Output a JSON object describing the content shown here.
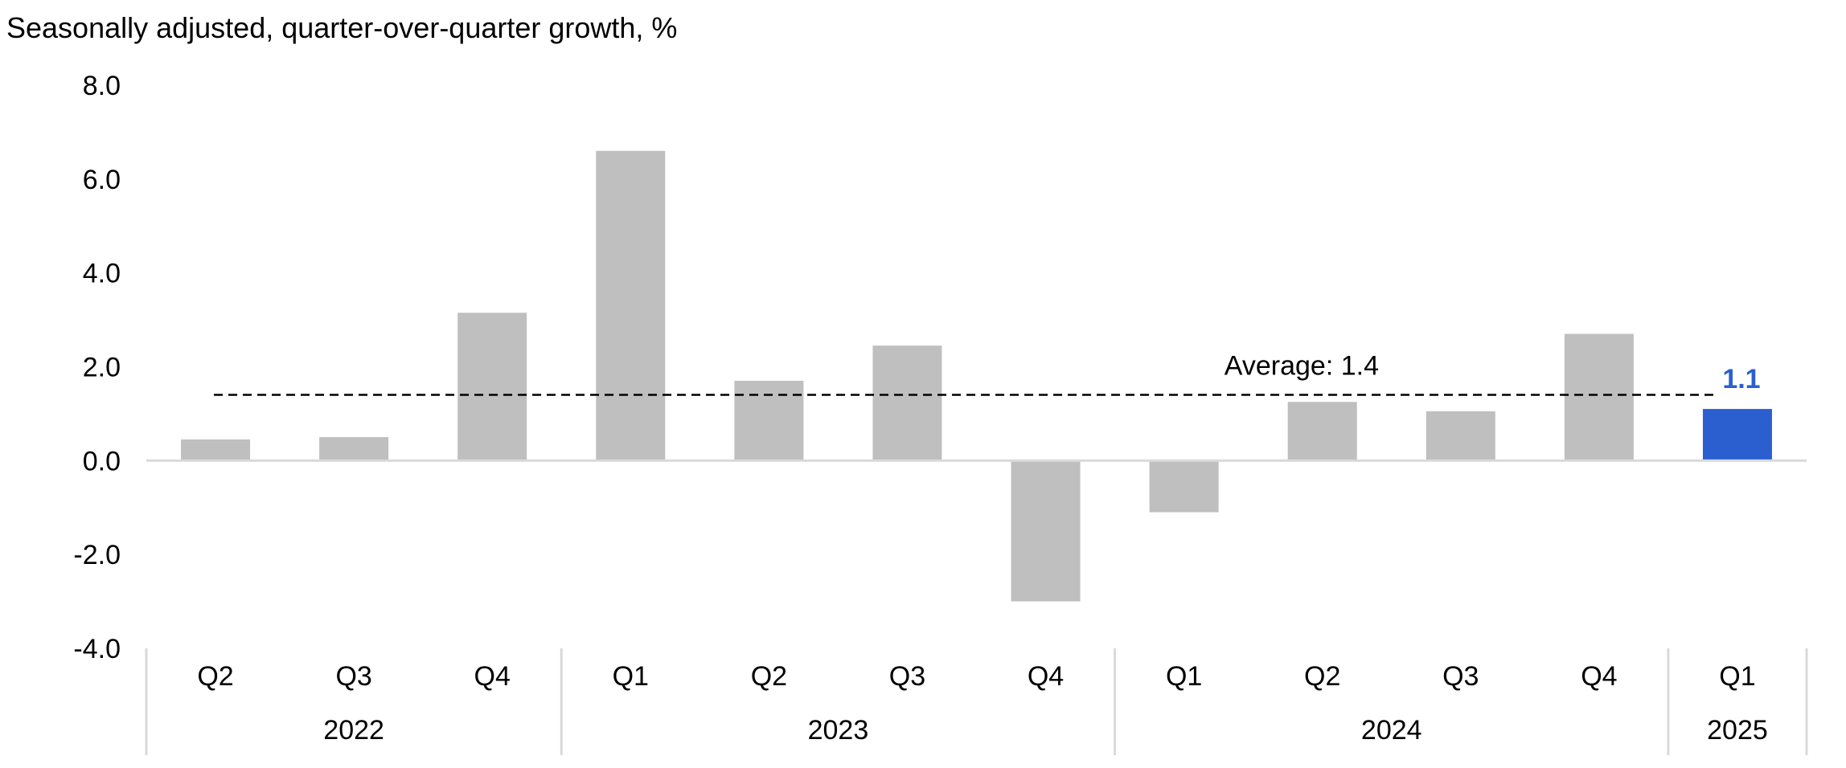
{
  "chart_data": {
    "type": "bar",
    "title": "Seasonally adjusted, quarter-over-quarter growth, %",
    "xlabel": "",
    "ylabel": "",
    "ylim": [
      -4.0,
      8.0
    ],
    "yticks": [
      "8.0",
      "6.0",
      "4.0",
      "2.0",
      "0.0",
      "-2.0",
      "-4.0"
    ],
    "ytick_values": [
      8,
      6,
      4,
      2,
      0,
      -2,
      -4
    ],
    "categories": [
      "Q2",
      "Q3",
      "Q4",
      "Q1",
      "Q2",
      "Q3",
      "Q4",
      "Q1",
      "Q2",
      "Q3",
      "Q4",
      "Q1"
    ],
    "values": [
      0.45,
      0.5,
      3.15,
      6.6,
      1.7,
      2.45,
      -3.0,
      -1.1,
      1.25,
      1.05,
      2.7,
      1.1
    ],
    "year_groups": [
      {
        "label": "2022",
        "count": 3
      },
      {
        "label": "2023",
        "count": 4
      },
      {
        "label": "2024",
        "count": 4
      },
      {
        "label": "2025",
        "count": 1
      }
    ],
    "average": {
      "value": 1.4,
      "label": "Average: 1.4"
    },
    "highlight": {
      "index": 11,
      "label": "1.1",
      "color": "#2B5FD0"
    },
    "bar_color": "#BFBFBF",
    "grid": false,
    "legend": "none"
  }
}
